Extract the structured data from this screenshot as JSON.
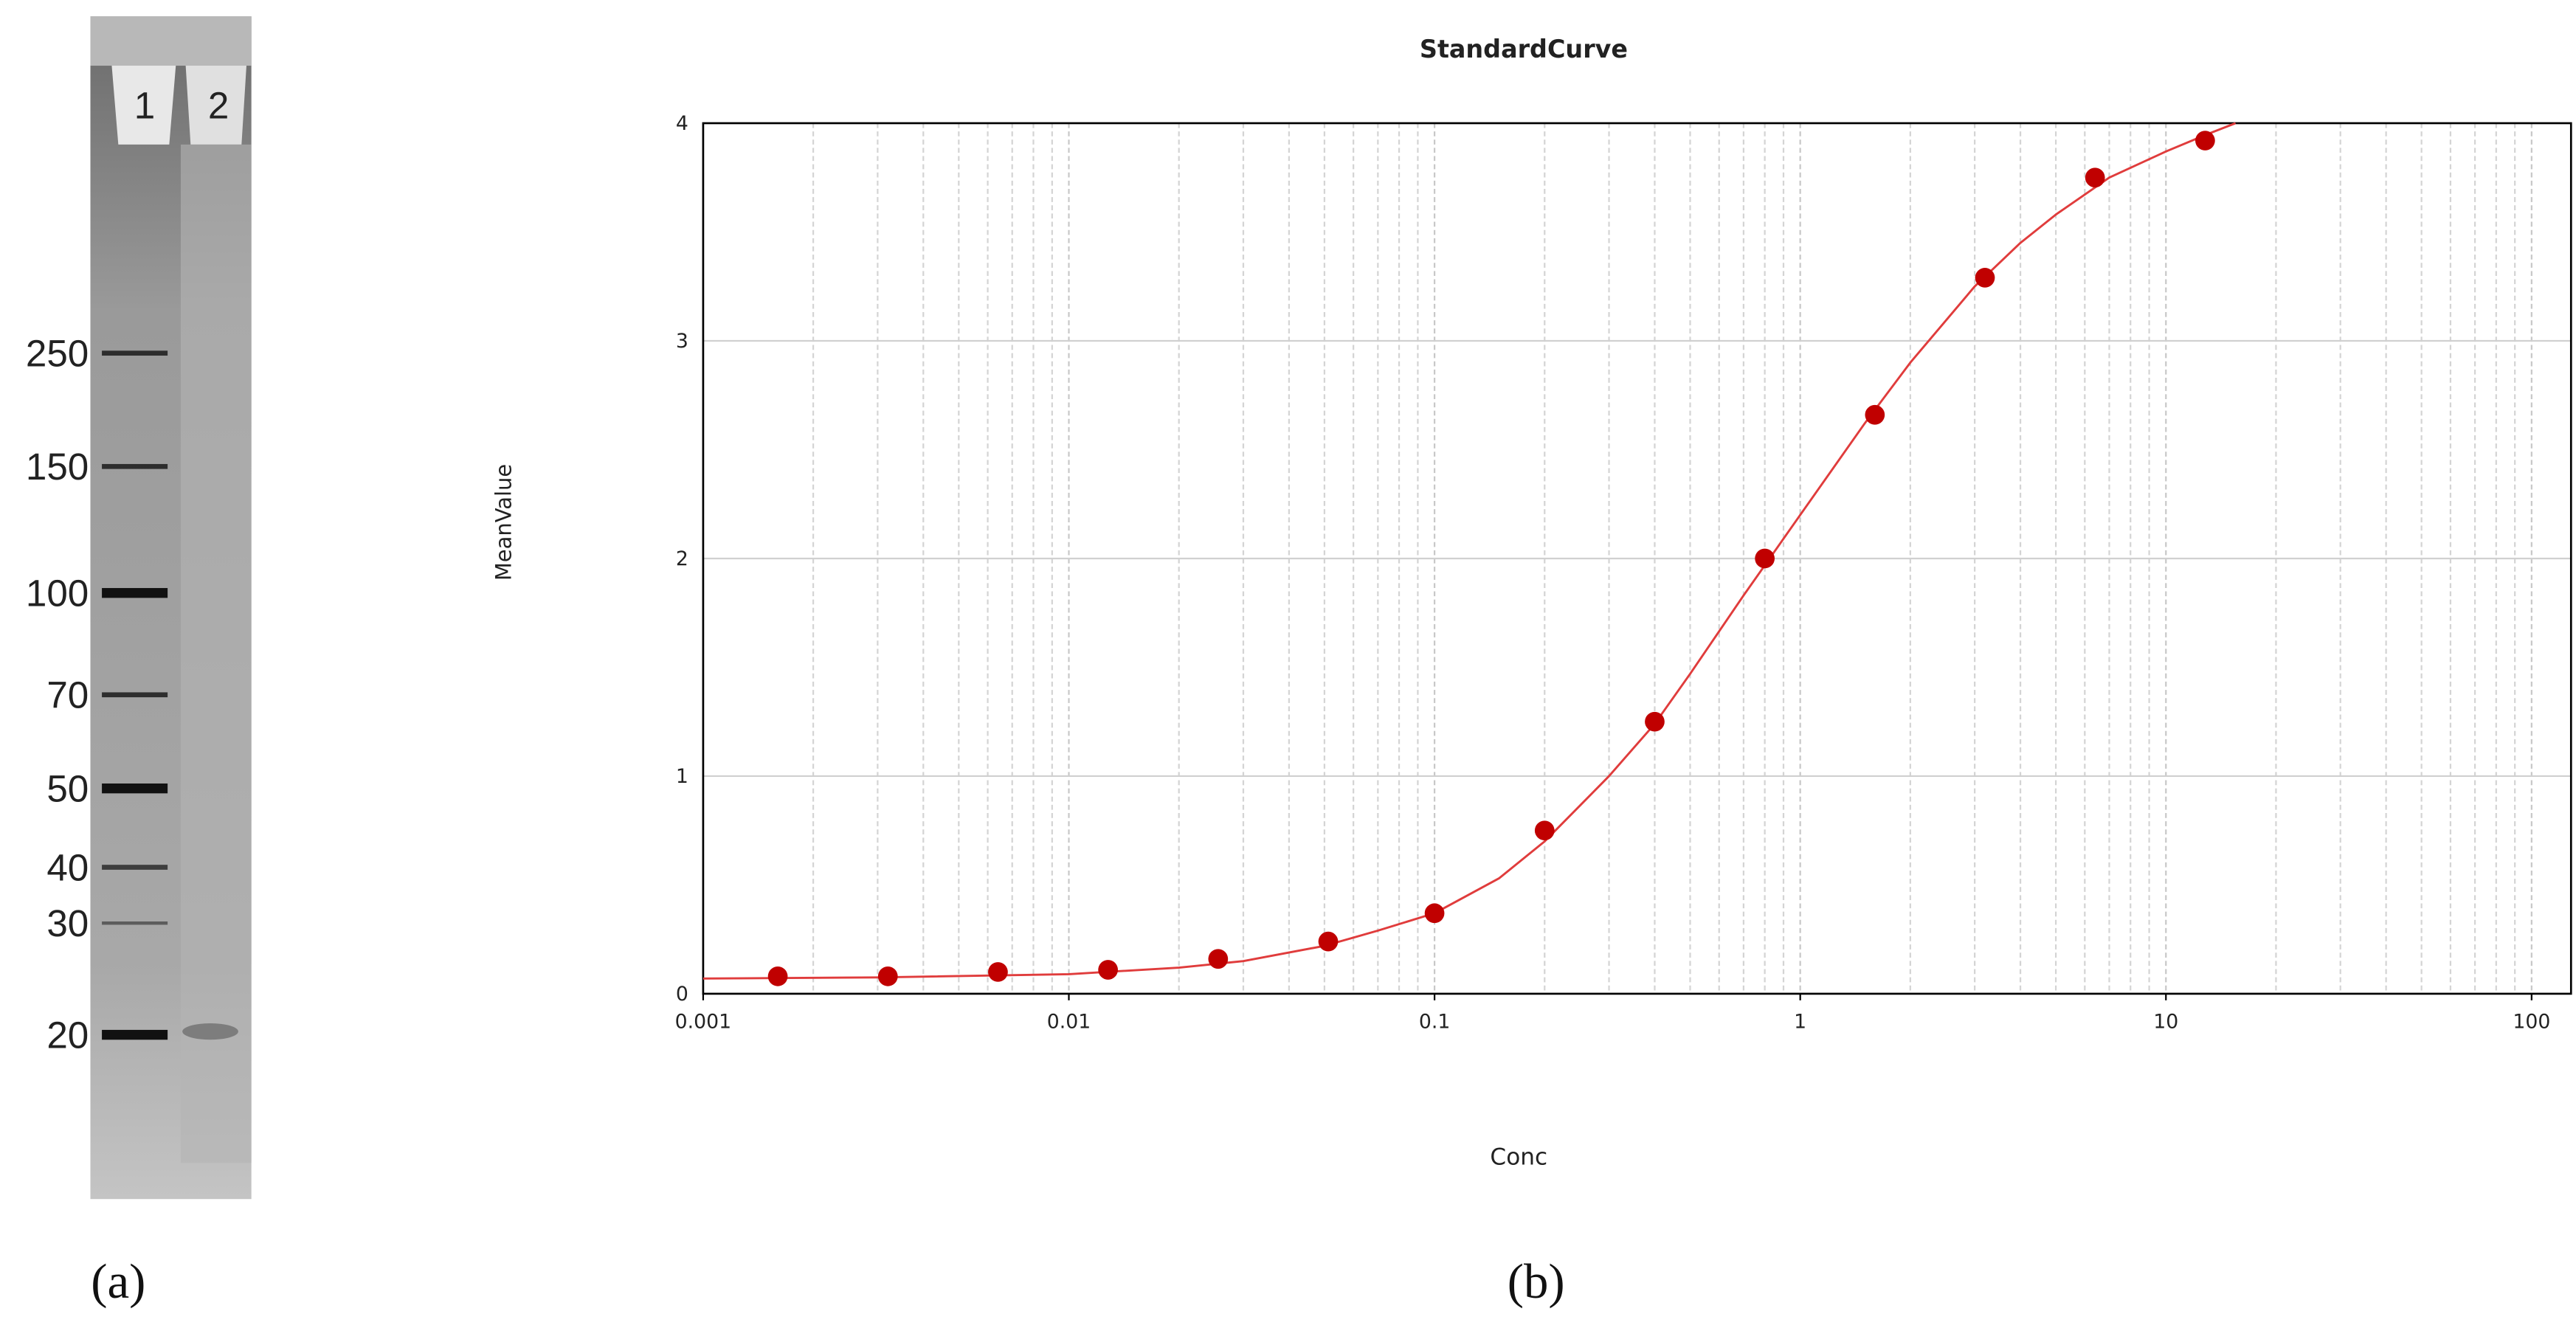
{
  "panel_labels": [
    "(a)",
    "(b)"
  ],
  "gel": {
    "lanes": [
      "1",
      "2"
    ],
    "markers": [
      "250",
      "150",
      "100",
      "70",
      "50",
      "40",
      "30",
      "20"
    ]
  },
  "chart_data": {
    "type": "scatter",
    "title": "StandardCurve",
    "x_label": "Conc",
    "y_label": "MeanValue",
    "xscale": "log",
    "grid": true,
    "minor_grid": true,
    "xlim": [
      0.001,
      100
    ],
    "ylim": [
      0,
      4
    ],
    "xticks": [
      0.001,
      0.01,
      0.1,
      1,
      10,
      100
    ],
    "yticks": [
      0,
      1,
      2,
      3,
      4
    ],
    "x": [
      0.0016,
      0.0032,
      0.0064,
      0.0128,
      0.0256,
      0.0512,
      0.1,
      0.2,
      0.4,
      0.8,
      1.6,
      3.2,
      6.4,
      12.8
    ],
    "series": [
      {
        "color": "#c00000",
        "values": [
          0.08,
          0.08,
          0.1,
          0.11,
          0.16,
          0.24,
          0.37,
          0.75,
          1.25,
          2.0,
          2.66,
          3.29,
          3.75,
          3.92
        ]
      },
      {
        "type": "line",
        "color": "#e03c3c",
        "x": [
          0.001,
          0.003,
          0.01,
          0.02,
          0.03,
          0.05,
          0.07,
          0.1,
          0.15,
          0.2,
          0.3,
          0.4,
          0.5,
          0.7,
          1,
          1.5,
          2,
          3,
          4,
          5,
          7,
          10,
          13,
          15.5
        ],
        "values": [
          0.07,
          0.075,
          0.09,
          0.12,
          0.15,
          0.22,
          0.29,
          0.37,
          0.53,
          0.7,
          1.0,
          1.24,
          1.47,
          1.83,
          2.2,
          2.62,
          2.9,
          3.25,
          3.45,
          3.58,
          3.75,
          3.87,
          3.95,
          4.0
        ]
      }
    ]
  }
}
